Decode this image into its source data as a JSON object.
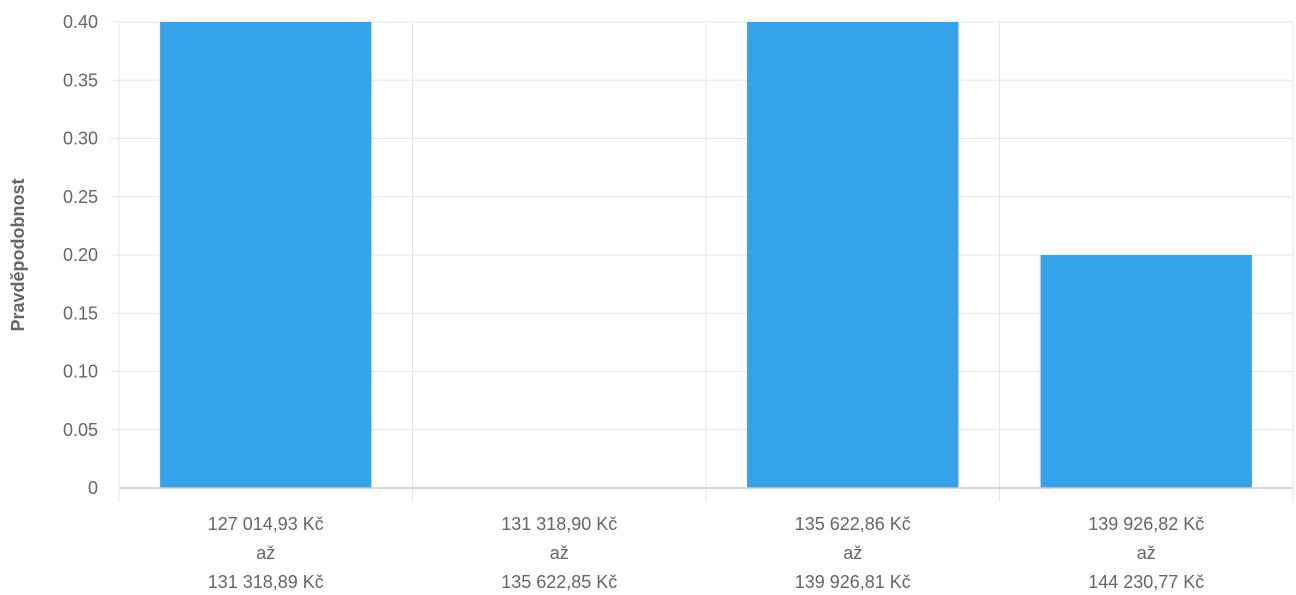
{
  "chart_data": {
    "type": "bar",
    "ylabel": "Pravděpodobnost",
    "xlabel": "",
    "ylim": [
      0,
      0.4
    ],
    "y_ticks": [
      "0",
      "0.05",
      "0.10",
      "0.15",
      "0.20",
      "0.25",
      "0.30",
      "0.35",
      "0.40"
    ],
    "categories": [
      [
        "127 014,93 Kč",
        "až",
        "131 318,89 Kč"
      ],
      [
        "131 318,90 Kč",
        "až",
        "135 622,85 Kč"
      ],
      [
        "135 622,86 Kč",
        "až",
        "139 926,81 Kč"
      ],
      [
        "139 926,82 Kč",
        "až",
        "144 230,77 Kč"
      ]
    ],
    "values": [
      0.4,
      0,
      0.4,
      0.2
    ],
    "bar_color": "#36a2eb",
    "grid": true,
    "legend": "none"
  }
}
